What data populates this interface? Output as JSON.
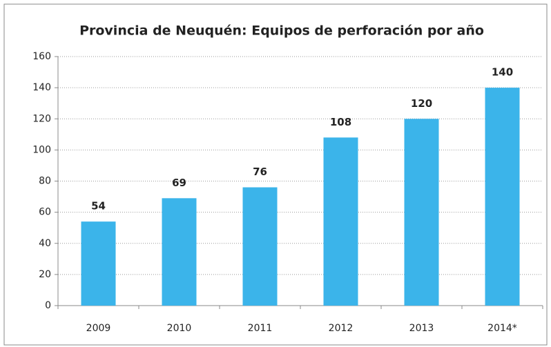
{
  "chart_data": {
    "type": "bar",
    "title": "Provincia de Neuquén: Equipos de perforación por año",
    "categories": [
      "2009",
      "2010",
      "2011",
      "2012",
      "2013",
      "2014*"
    ],
    "values": [
      54,
      69,
      76,
      108,
      120,
      140
    ],
    "color": "#3bb4ea",
    "ylim": [
      0,
      160
    ],
    "yticks": [
      0,
      20,
      40,
      60,
      80,
      100,
      120,
      140,
      160
    ],
    "grid": true
  }
}
